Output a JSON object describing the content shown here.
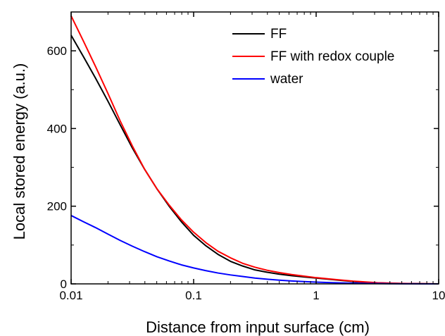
{
  "chart_data": {
    "type": "line",
    "xlabel": "Distance from input surface (cm)",
    "ylabel": "Local stored energy (a.u.)",
    "x_scale": "log",
    "xlim": [
      0.01,
      10
    ],
    "ylim": [
      0,
      700
    ],
    "x_ticks": [
      {
        "value": 0.01,
        "label": "0.01"
      },
      {
        "value": 0.1,
        "label": "0.1"
      },
      {
        "value": 1,
        "label": "1"
      },
      {
        "value": 10,
        "label": "10"
      }
    ],
    "y_ticks": [
      {
        "value": 0,
        "label": "0"
      },
      {
        "value": 200,
        "label": "200"
      },
      {
        "value": 400,
        "label": "400"
      },
      {
        "value": 600,
        "label": "600"
      }
    ],
    "grid": false,
    "legend_position": "top-right",
    "series": [
      {
        "name": "FF",
        "color": "#000000",
        "x": [
          0.01,
          0.0126,
          0.0158,
          0.02,
          0.0251,
          0.0316,
          0.0398,
          0.0501,
          0.0631,
          0.0794,
          0.1,
          0.126,
          0.158,
          0.2,
          0.251,
          0.316,
          0.398,
          0.501,
          0.631,
          0.794,
          1,
          1.26,
          1.58,
          2,
          2.51,
          3.16,
          3.98,
          5.01,
          6.31,
          7.94,
          10
        ],
        "y": [
          640,
          585,
          530,
          470,
          410,
          350,
          295,
          245,
          200,
          160,
          125,
          98,
          76,
          58,
          46,
          36,
          30,
          25,
          21,
          18,
          15,
          12,
          9,
          6,
          4,
          2.5,
          1.5,
          1,
          0.6,
          0.3,
          0.1
        ]
      },
      {
        "name": "FF with redox couple",
        "color": "#ff0000",
        "x": [
          0.01,
          0.0126,
          0.0158,
          0.02,
          0.0251,
          0.0316,
          0.0398,
          0.0501,
          0.0631,
          0.0794,
          0.1,
          0.126,
          0.158,
          0.2,
          0.251,
          0.316,
          0.398,
          0.501,
          0.631,
          0.794,
          1,
          1.26,
          1.58,
          2,
          2.51,
          3.16,
          3.98,
          5.01,
          6.31,
          7.94,
          10
        ],
        "y": [
          690,
          625,
          560,
          490,
          420,
          355,
          295,
          245,
          203,
          165,
          133,
          106,
          84,
          67,
          53,
          43,
          35,
          29,
          24,
          20,
          16,
          13,
          10,
          7,
          5,
          3,
          2,
          1.2,
          0.7,
          0.4,
          0.1
        ]
      },
      {
        "name": "water",
        "color": "#0000ff",
        "x": [
          0.01,
          0.0126,
          0.0158,
          0.02,
          0.0251,
          0.0316,
          0.0398,
          0.0501,
          0.0631,
          0.0794,
          0.1,
          0.126,
          0.158,
          0.2,
          0.251,
          0.316,
          0.398,
          0.501,
          0.631,
          0.794,
          1,
          1.26,
          1.58,
          2,
          2.51,
          3.16,
          3.98,
          5.01,
          6.31,
          7.94,
          10
        ],
        "y": [
          176,
          160,
          145,
          128,
          112,
          97,
          83,
          70,
          59,
          49,
          41,
          34,
          28,
          23,
          19,
          15,
          12,
          9.5,
          7.5,
          6,
          4.5,
          3.5,
          2.5,
          1.8,
          1.2,
          0.8,
          0.5,
          0.3,
          0.2,
          0.1,
          0.05
        ]
      }
    ]
  }
}
